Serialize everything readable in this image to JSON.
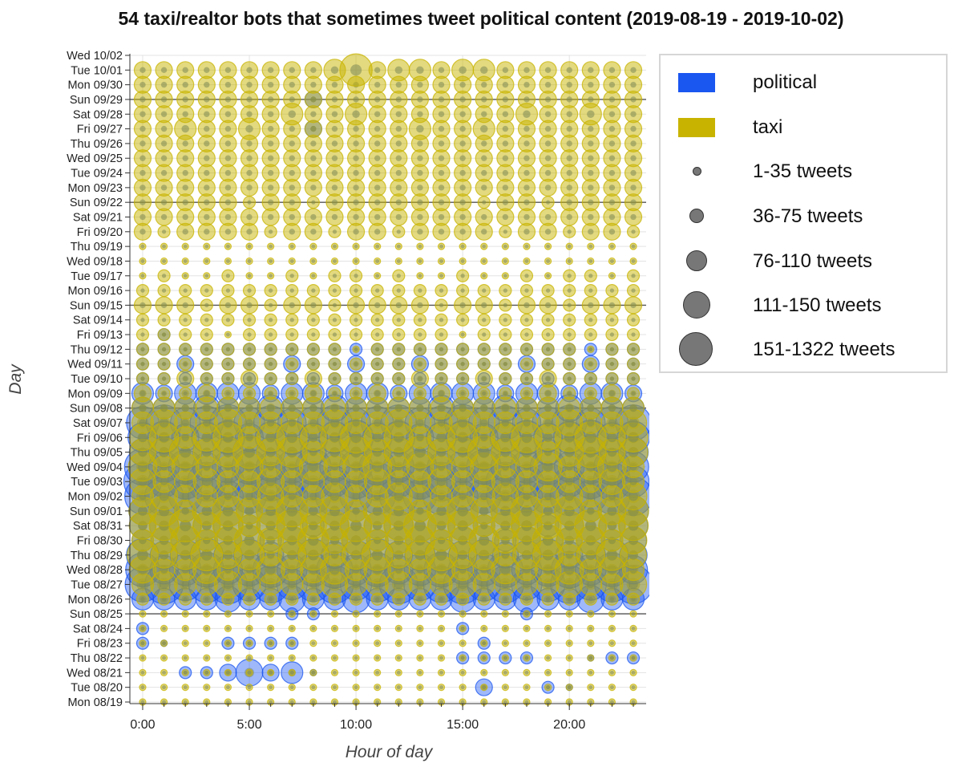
{
  "chart_data": {
    "type": "scatter",
    "title": "54 taxi/realtor bots that sometimes tweet political content (2019-08-19 - 2019-10-02)",
    "xlabel": "Hour of day",
    "ylabel": "Day",
    "x_ticks": [
      {
        "value": 0,
        "label": "0:00"
      },
      {
        "value": 5,
        "label": "5:00"
      },
      {
        "value": 10,
        "label": "10:00"
      },
      {
        "value": 15,
        "label": "15:00"
      },
      {
        "value": 20,
        "label": "20:00"
      }
    ],
    "xlim": [
      -0.6,
      23.6
    ],
    "days": [
      "Mon 08/19",
      "Tue 08/20",
      "Wed 08/21",
      "Thu 08/22",
      "Fri 08/23",
      "Sat 08/24",
      "Sun 08/25",
      "Mon 08/26",
      "Tue 08/27",
      "Wed 08/28",
      "Thu 08/29",
      "Fri 08/30",
      "Sat 08/31",
      "Sun 09/01",
      "Mon 09/02",
      "Tue 09/03",
      "Wed 09/04",
      "Thu 09/05",
      "Fri 09/06",
      "Sat 09/07",
      "Sun 09/08",
      "Mon 09/09",
      "Tue 09/10",
      "Wed 09/11",
      "Thu 09/12",
      "Fri 09/13",
      "Sat 09/14",
      "Sun 09/15",
      "Mon 09/16",
      "Tue 09/17",
      "Wed 09/18",
      "Thu 09/19",
      "Fri 09/20",
      "Sat 09/21",
      "Sun 09/22",
      "Mon 09/23",
      "Tue 09/24",
      "Wed 09/25",
      "Thu 09/26",
      "Fri 09/27",
      "Sat 09/28",
      "Sun 09/29",
      "Mon 09/30",
      "Tue 10/01",
      "Wed 10/02"
    ],
    "week_separators": [
      "Sun 08/25",
      "Sun 09/08",
      "Sun 09/15",
      "Sun 09/22",
      "Sun 09/29"
    ],
    "grid": true,
    "legend_position": "right",
    "size_classes": [
      "1-35 tweets",
      "36-75 tweets",
      "76-110 tweets",
      "111-150 tweets",
      "151-1322 tweets"
    ],
    "series": [
      {
        "name": "political",
        "color": "#1a56f0",
        "counts": {
          "Tue 08/20": {
            "16": 90,
            "19": 70,
            "20": 30
          },
          "Wed 08/21": {
            "2": 75,
            "3": 55,
            "4": 100,
            "5": 160,
            "6": 80,
            "7": 130,
            "8": 10
          },
          "Thu 08/22": {
            "15": 70,
            "16": 40,
            "17": 50,
            "18": 60,
            "21": 30,
            "22": 40,
            "23": 40
          },
          "Fri 08/23": {
            "0": 40,
            "1": 20,
            "4": 50,
            "5": 50,
            "6": 50,
            "7": 50,
            "16": 40
          },
          "Sat 08/24": {
            "0": 50,
            "15": 55
          },
          "Sun 08/25": {
            "7": 40,
            "8": 60,
            "18": 40
          },
          "Mon 08/26": {
            "*": 140
          },
          "Tue 08/27": {
            "*": 220
          },
          "Wed 08/28": {
            "*": 200
          },
          "Thu 08/29": {
            "*": 180
          },
          "Fri 08/30": {
            "*": 160
          },
          "Sat 08/31": {
            "*": 170
          },
          "Sun 09/01": {
            "*": 170
          },
          "Mon 09/02": {
            "*": 220
          },
          "Tue 09/03": {
            "*": 220
          },
          "Wed 09/04": {
            "*": 200
          },
          "Thu 09/05": {
            "*": 180
          },
          "Fri 09/06": {
            "*": 190
          },
          "Sat 09/07": {
            "*": 200
          },
          "Sun 09/08": {
            "*": 140
          },
          "Mon 09/09": {
            "*": 120
          },
          "Tue 09/10": {
            "*": 60
          },
          "Wed 09/11": {
            "*": 70
          },
          "Thu 09/12": {
            "*": 65
          },
          "Fri 09/13": {
            "1": 40
          },
          "Fri 09/27": {
            "8": 80
          },
          "Sun 09/29": {
            "8": 80
          }
        }
      },
      {
        "name": "taxi",
        "color": "#c8b400",
        "counts": {
          "Mon 08/19": {
            "*": 15
          },
          "Tue 08/20": {
            "*": 20
          },
          "Wed 08/21": {
            "*": 15
          },
          "Thu 08/22": {
            "*": 20
          },
          "Fri 08/23": {
            "*": 15
          },
          "Sat 08/24": {
            "*": 15
          },
          "Sun 08/25": {
            "*": 20
          },
          "Mon 08/26": {
            "*": 60
          },
          "Tue 08/27": {
            "*": 140
          },
          "Wed 08/28": {
            "*": 150
          },
          "Thu 08/29": {
            "*": 170
          },
          "Fri 08/30": {
            "*": 165
          },
          "Sat 08/31": {
            "*": 175
          },
          "Sun 09/01": {
            "*": 170
          },
          "Mon 09/02": {
            "*": 140
          },
          "Tue 09/03": {
            "*": 140
          },
          "Wed 09/04": {
            "*": 150
          },
          "Thu 09/05": {
            "*": 175
          },
          "Fri 09/06": {
            "*": 165
          },
          "Sat 09/07": {
            "*": 140
          },
          "Sun 09/08": {
            "*": 130
          },
          "Mon 09/09": {
            "*": 70
          },
          "Tue 09/10": {
            "*": 70
          },
          "Wed 09/11": {
            "*": 60
          },
          "Thu 09/12": {
            "*": 40
          },
          "Fri 09/13": {
            "*": 40
          },
          "Sat 09/14": {
            "*": 60
          },
          "Sun 09/15": {
            "*": 80
          },
          "Mon 09/16": {
            "*": 45
          },
          "Tue 09/17": {
            "*": 35
          },
          "Wed 09/18": {
            "*": 30
          },
          "Thu 09/19": {
            "*": 30
          },
          "Fri 09/20": {
            "*": 80
          },
          "Sat 09/21": {
            "*": 90
          },
          "Sun 09/22": {
            "*": 85
          },
          "Mon 09/23": {
            "*": 90
          },
          "Tue 09/24": {
            "*": 95
          },
          "Wed 09/25": {
            "*": 95
          },
          "Thu 09/26": {
            "*": 90
          },
          "Fri 09/27": {
            "*": 100
          },
          "Sat 09/28": {
            "*": 100
          },
          "Sun 09/29": {
            "*": 90
          },
          "Mon 09/30": {
            "*": 90
          },
          "Tue 10/01": {
            "*": 95,
            "9": 150,
            "10": 200,
            "12": 140,
            "13": 130,
            "15": 150,
            "16": 120
          }
        }
      }
    ]
  },
  "legend": {
    "items": [
      {
        "label": "political",
        "color": "#1a56f0"
      },
      {
        "label": "taxi",
        "color": "#c8b400"
      },
      {
        "label": "1-35 tweets"
      },
      {
        "label": "36-75 tweets"
      },
      {
        "label": "76-110 tweets"
      },
      {
        "label": "111-150 tweets"
      },
      {
        "label": "151-1322 tweets"
      }
    ]
  }
}
